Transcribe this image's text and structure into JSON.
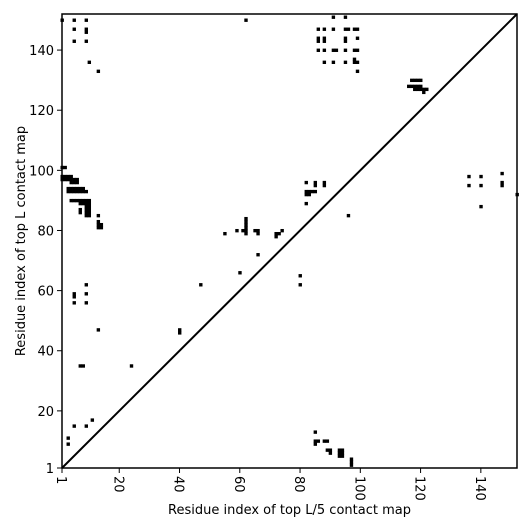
{
  "chart_data": {
    "type": "heatmap",
    "subtype": "contact-map",
    "xlabel": "Residue index of top L/5 contact map",
    "ylabel": "Residue index of top L contact map",
    "xlim": [
      1,
      152
    ],
    "ylim": [
      1,
      152
    ],
    "xticks": [
      1,
      20,
      40,
      60,
      80,
      100,
      120,
      140
    ],
    "xtick_labels": [
      "1",
      "20",
      "40",
      "60",
      "80",
      "100",
      "120",
      "140"
    ],
    "yticks": [
      1,
      20,
      40,
      60,
      80,
      100,
      120,
      140
    ],
    "ytick_labels": [
      "1",
      "20",
      "40",
      "60",
      "80",
      "100",
      "120",
      "140"
    ],
    "x_tick_rotation_deg": -90,
    "diagonal_line": true,
    "grid": false,
    "legend": "none",
    "colors": {
      "contact": "#000000",
      "background": "#ffffff",
      "frame": "#000000"
    },
    "contacts_upper_top_L": [
      [
        1,
        150
      ],
      [
        1,
        101
      ],
      [
        2,
        101
      ],
      [
        1,
        98
      ],
      [
        2,
        98
      ],
      [
        3,
        98
      ],
      [
        4,
        98
      ],
      [
        1,
        97
      ],
      [
        2,
        97
      ],
      [
        3,
        97
      ],
      [
        4,
        97
      ],
      [
        5,
        97
      ],
      [
        6,
        97
      ],
      [
        4,
        96
      ],
      [
        5,
        96
      ],
      [
        6,
        96
      ],
      [
        3,
        94
      ],
      [
        4,
        94
      ],
      [
        5,
        94
      ],
      [
        6,
        94
      ],
      [
        7,
        94
      ],
      [
        8,
        94
      ],
      [
        3,
        93
      ],
      [
        4,
        93
      ],
      [
        5,
        93
      ],
      [
        6,
        93
      ],
      [
        7,
        93
      ],
      [
        8,
        93
      ],
      [
        9,
        93
      ],
      [
        4,
        90
      ],
      [
        5,
        90
      ],
      [
        6,
        90
      ],
      [
        7,
        90
      ],
      [
        8,
        90
      ],
      [
        9,
        90
      ],
      [
        10,
        90
      ],
      [
        7,
        89
      ],
      [
        8,
        89
      ],
      [
        9,
        89
      ],
      [
        10,
        89
      ],
      [
        9,
        88
      ],
      [
        10,
        88
      ],
      [
        7,
        87
      ],
      [
        9,
        87
      ],
      [
        10,
        87
      ],
      [
        7,
        86
      ],
      [
        9,
        86
      ],
      [
        10,
        86
      ],
      [
        9,
        85
      ],
      [
        10,
        85
      ],
      [
        13,
        85
      ],
      [
        13,
        83
      ],
      [
        13,
        82
      ],
      [
        14,
        82
      ],
      [
        13,
        81
      ],
      [
        14,
        81
      ],
      [
        5,
        150
      ],
      [
        5,
        147
      ],
      [
        9,
        150
      ],
      [
        9,
        147
      ],
      [
        9,
        146
      ],
      [
        5,
        143
      ],
      [
        9,
        143
      ],
      [
        10,
        136
      ],
      [
        13,
        133
      ],
      [
        9,
        62
      ],
      [
        5,
        59
      ],
      [
        9,
        59
      ],
      [
        5,
        58
      ],
      [
        5,
        56
      ],
      [
        9,
        56
      ],
      [
        13,
        47
      ],
      [
        7,
        35
      ],
      [
        8,
        35
      ],
      [
        24,
        35
      ],
      [
        40,
        47
      ],
      [
        40,
        46
      ],
      [
        47,
        62
      ],
      [
        55,
        79
      ],
      [
        59,
        80
      ],
      [
        61,
        80
      ],
      [
        62,
        84
      ],
      [
        62,
        83
      ],
      [
        62,
        82
      ],
      [
        62,
        81
      ],
      [
        62,
        80
      ],
      [
        62,
        79
      ],
      [
        65,
        80
      ],
      [
        66,
        80
      ],
      [
        66,
        79
      ],
      [
        66,
        72
      ],
      [
        60,
        66
      ],
      [
        72,
        79
      ],
      [
        72,
        78
      ],
      [
        73,
        79
      ],
      [
        74,
        80
      ],
      [
        80,
        65
      ],
      [
        80,
        62
      ],
      [
        82,
        96
      ],
      [
        85,
        96
      ],
      [
        85,
        95
      ],
      [
        82,
        93
      ],
      [
        83,
        93
      ],
      [
        84,
        93
      ],
      [
        85,
        93
      ],
      [
        82,
        92
      ],
      [
        83,
        92
      ],
      [
        82,
        89
      ],
      [
        88,
        96
      ],
      [
        88,
        95
      ],
      [
        96,
        85
      ],
      [
        62,
        150
      ],
      [
        86,
        147
      ],
      [
        88,
        147
      ],
      [
        86,
        144
      ],
      [
        88,
        144
      ],
      [
        86,
        143
      ],
      [
        88,
        143
      ],
      [
        86,
        140
      ],
      [
        88,
        140
      ],
      [
        88,
        136
      ],
      [
        91,
        151
      ],
      [
        91,
        147
      ],
      [
        91,
        140
      ],
      [
        91,
        136
      ],
      [
        92,
        140
      ],
      [
        95,
        151
      ],
      [
        95,
        147
      ],
      [
        95,
        144
      ],
      [
        95,
        143
      ],
      [
        95,
        140
      ],
      [
        95,
        136
      ],
      [
        96,
        147
      ],
      [
        98,
        147
      ],
      [
        99,
        147
      ],
      [
        99,
        144
      ],
      [
        98,
        140
      ],
      [
        99,
        140
      ],
      [
        98,
        137
      ],
      [
        98,
        136
      ],
      [
        99,
        136
      ],
      [
        99,
        133
      ],
      [
        117,
        130
      ],
      [
        118,
        130
      ],
      [
        119,
        130
      ],
      [
        120,
        130
      ],
      [
        117,
        128
      ],
      [
        118,
        128
      ],
      [
        119,
        128
      ],
      [
        120,
        128
      ],
      [
        118,
        127
      ],
      [
        119,
        127
      ],
      [
        120,
        127
      ],
      [
        121,
        127
      ],
      [
        122,
        127
      ],
      [
        121,
        126
      ],
      [
        116,
        128
      ],
      [
        136,
        98
      ],
      [
        136,
        95
      ],
      [
        140,
        98
      ],
      [
        140,
        95
      ],
      [
        140,
        88
      ],
      [
        147,
        99
      ],
      [
        147,
        96
      ],
      [
        147,
        95
      ],
      [
        152,
        92
      ]
    ],
    "contacts_lower_top_L5": [
      [
        3,
        11
      ],
      [
        3,
        9
      ],
      [
        5,
        15
      ],
      [
        9,
        15
      ],
      [
        11,
        17
      ],
      [
        85,
        13
      ],
      [
        85,
        10
      ],
      [
        86,
        10
      ],
      [
        85,
        9
      ],
      [
        88,
        10
      ],
      [
        89,
        10
      ],
      [
        89,
        7
      ],
      [
        90,
        7
      ],
      [
        90,
        6
      ],
      [
        93,
        7
      ],
      [
        94,
        7
      ],
      [
        93,
        6
      ],
      [
        94,
        6
      ],
      [
        93,
        5
      ],
      [
        94,
        5
      ],
      [
        97,
        4
      ],
      [
        97,
        3
      ],
      [
        97,
        2
      ]
    ]
  }
}
